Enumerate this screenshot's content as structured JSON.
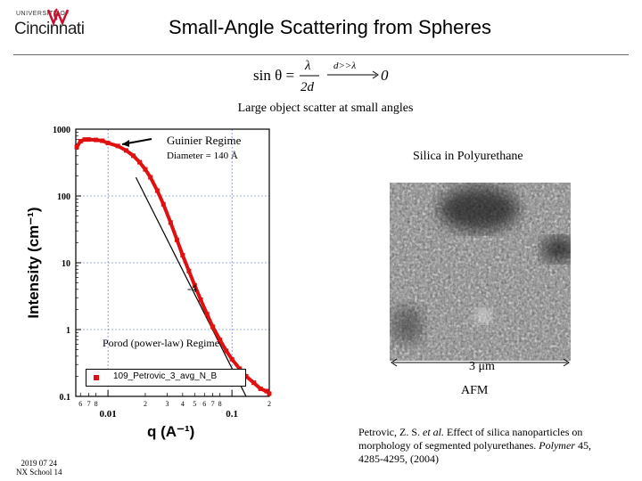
{
  "header": {
    "university_prefix": "UNIVERSITY OF",
    "university_name": "Cincinnati",
    "title": "Small-Angle Scattering from Spheres"
  },
  "equation": {
    "lhs": "sin θ =",
    "numerator": "λ",
    "denominator": "2d",
    "condition": "d>>λ",
    "result": "0"
  },
  "caption": "Large object scatter at small angles",
  "plot": {
    "guinier_label": "Guinier Regime",
    "diameter_label": "Diameter = 140 Å",
    "slope_label": "-4",
    "porod_label": "Porod (power-law) Regime",
    "legend": "109_Petrovic_3_avg_N_B",
    "colors": {
      "data": "#e01010",
      "grid": "#4060c0",
      "axis": "#000000"
    }
  },
  "chart_data": {
    "type": "scatter",
    "title": "",
    "xlabel": "q (A⁻¹)",
    "ylabel": "Intensity (cm⁻¹)",
    "xscale": "log",
    "yscale": "log",
    "xlim": [
      0.0055,
      0.2
    ],
    "ylim": [
      0.1,
      1000
    ],
    "y_ticks": [
      "1000",
      "100",
      "10",
      "1",
      "0.1"
    ],
    "x_major_ticks": [
      "0.01",
      "0.1"
    ],
    "x_minor_ticks": [
      "6",
      "7",
      "8",
      "2",
      "3",
      "4",
      "5",
      "6",
      "7",
      "8",
      "2"
    ],
    "series": [
      {
        "name": "109_Petrovic_3_avg_N_B",
        "x": [
          0.0056,
          0.006,
          0.0065,
          0.007,
          0.008,
          0.009,
          0.01,
          0.012,
          0.014,
          0.016,
          0.018,
          0.02,
          0.022,
          0.025,
          0.028,
          0.032,
          0.036,
          0.04,
          0.045,
          0.05,
          0.056,
          0.063,
          0.07,
          0.08,
          0.09,
          0.1,
          0.115,
          0.13,
          0.15,
          0.17,
          0.19,
          0.2
        ],
        "y": [
          540,
          660,
          700,
          700,
          690,
          670,
          620,
          560,
          480,
          400,
          320,
          250,
          190,
          120,
          75,
          40,
          22,
          13,
          7.5,
          4.6,
          2.8,
          1.7,
          1.1,
          0.7,
          0.48,
          0.36,
          0.26,
          0.2,
          0.16,
          0.13,
          0.12,
          0.11
        ]
      }
    ],
    "reference_line": {
      "name": "slope -4",
      "x": [
        0.0168,
        0.13
      ],
      "y": [
        190,
        0.07
      ]
    }
  },
  "afm": {
    "title": "Silica in Polyurethane",
    "scale_label": "3 μm",
    "label": "AFM"
  },
  "reference": {
    "authors": "Petrovic, Z. S.",
    "etal": "et al.",
    "title": "Effect of silica nanoparticles on morphology of segmented polyurethanes.",
    "journal": "Polymer",
    "details": "45, 4285-4295, (2004)"
  },
  "footer": {
    "date": "2019 07 24",
    "event": "NX School 14"
  }
}
